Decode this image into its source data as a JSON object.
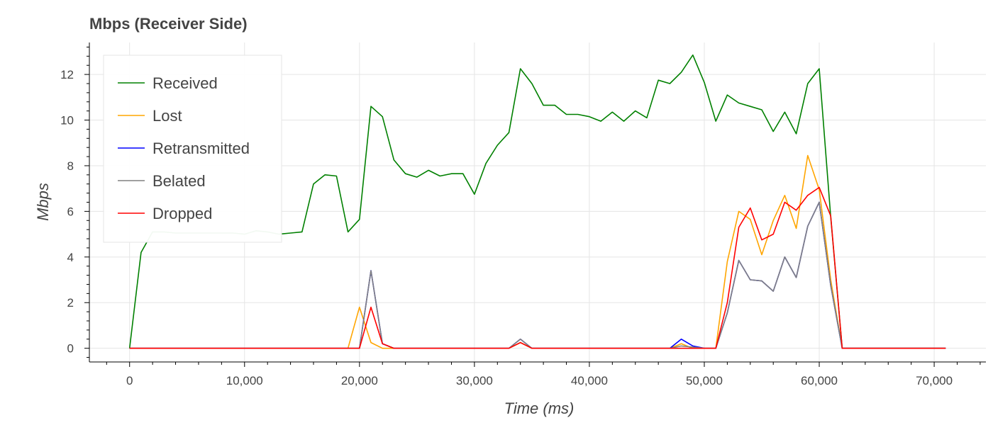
{
  "chart_data": {
    "type": "line",
    "title": "Mbps (Receiver Side)",
    "xlabel": "Time (ms)",
    "ylabel": "Mbps",
    "xlim": [
      -3500,
      74500
    ],
    "ylim": [
      -0.6,
      13.4
    ],
    "xticks": [
      0,
      10000,
      20000,
      30000,
      40000,
      50000,
      60000,
      70000
    ],
    "xtick_labels": [
      "0",
      "10,000",
      "20,000",
      "30,000",
      "40,000",
      "50,000",
      "60,000",
      "70,000"
    ],
    "yticks": [
      0,
      2,
      4,
      6,
      8,
      10,
      12
    ],
    "ytick_labels": [
      "0",
      "2",
      "4",
      "6",
      "8",
      "10",
      "12"
    ],
    "grid": true,
    "legend_position": "top-left",
    "x": [
      0,
      1000,
      2000,
      3000,
      4000,
      5000,
      6000,
      7000,
      8000,
      9000,
      10000,
      11000,
      12000,
      13000,
      14000,
      15000,
      16000,
      17000,
      18000,
      19000,
      20000,
      21000,
      22000,
      23000,
      24000,
      25000,
      26000,
      27000,
      28000,
      29000,
      30000,
      31000,
      32000,
      33000,
      34000,
      35000,
      36000,
      37000,
      38000,
      39000,
      40000,
      41000,
      42000,
      43000,
      44000,
      45000,
      46000,
      47000,
      48000,
      49000,
      50000,
      51000,
      52000,
      53000,
      54000,
      55000,
      56000,
      57000,
      58000,
      59000,
      60000,
      61000,
      62000,
      63000,
      64000,
      65000,
      66000,
      67000,
      68000,
      69000,
      70000,
      71000
    ],
    "series": [
      {
        "name": "Received",
        "color": "#008000",
        "values": [
          0,
          4.2,
          5.1,
          5.1,
          5.05,
          5.05,
          5.05,
          5.05,
          5.05,
          5.05,
          5.0,
          5.15,
          5.1,
          5.0,
          5.05,
          5.1,
          7.2,
          7.6,
          7.55,
          5.1,
          5.65,
          10.6,
          10.15,
          8.25,
          7.65,
          7.5,
          7.8,
          7.55,
          7.65,
          7.65,
          6.75,
          8.1,
          8.9,
          9.45,
          12.25,
          11.6,
          10.65,
          10.65,
          10.25,
          10.25,
          10.15,
          9.95,
          10.35,
          9.95,
          10.4,
          10.1,
          11.75,
          11.6,
          12.1,
          12.85,
          11.65,
          9.95,
          11.1,
          10.75,
          10.6,
          10.45,
          9.5,
          10.35,
          9.4,
          11.6,
          12.25,
          5.75,
          0,
          0,
          0,
          0,
          0,
          0,
          0,
          0,
          0,
          0
        ]
      },
      {
        "name": "Lost",
        "color": "#ffa500",
        "values": [
          0,
          0,
          0,
          0,
          0,
          0,
          0,
          0,
          0,
          0,
          0,
          0,
          0,
          0,
          0,
          0,
          0,
          0,
          0,
          0,
          1.8,
          0.25,
          0,
          0,
          0,
          0,
          0,
          0,
          0,
          0,
          0,
          0,
          0,
          0,
          0.25,
          0,
          0,
          0,
          0,
          0,
          0,
          0,
          0,
          0,
          0,
          0,
          0,
          0,
          0.2,
          0,
          0,
          0,
          3.8,
          6.0,
          5.65,
          4.1,
          5.6,
          6.7,
          5.25,
          8.45,
          6.95,
          3.0,
          0,
          0,
          0,
          0,
          0,
          0,
          0,
          0,
          0,
          0
        ]
      },
      {
        "name": "Retransmitted",
        "color": "#0000ff",
        "values": [
          0,
          0,
          0,
          0,
          0,
          0,
          0,
          0,
          0,
          0,
          0,
          0,
          0,
          0,
          0,
          0,
          0,
          0,
          0,
          0,
          0,
          3.4,
          0.2,
          0,
          0,
          0,
          0,
          0,
          0,
          0,
          0,
          0,
          0,
          0,
          0.4,
          0,
          0,
          0,
          0,
          0,
          0,
          0,
          0,
          0,
          0,
          0,
          0,
          0,
          0.4,
          0.1,
          0,
          0,
          1.55,
          3.85,
          3.0,
          2.95,
          2.5,
          4.0,
          3.1,
          5.35,
          6.4,
          2.75,
          0,
          0,
          0,
          0,
          0,
          0,
          0,
          0,
          0,
          0
        ]
      },
      {
        "name": "Belated",
        "color": "#808080",
        "values": [
          0,
          0,
          0,
          0,
          0,
          0,
          0,
          0,
          0,
          0,
          0,
          0,
          0,
          0,
          0,
          0,
          0,
          0,
          0,
          0,
          0,
          3.4,
          0.2,
          0,
          0,
          0,
          0,
          0,
          0,
          0,
          0,
          0,
          0,
          0,
          0.4,
          0,
          0,
          0,
          0,
          0,
          0,
          0,
          0,
          0,
          0,
          0,
          0,
          0,
          0.1,
          0.05,
          0,
          0,
          1.55,
          3.85,
          3.0,
          2.95,
          2.5,
          4.0,
          3.1,
          5.35,
          6.4,
          2.75,
          0,
          0,
          0,
          0,
          0,
          0,
          0,
          0,
          0,
          0
        ]
      },
      {
        "name": "Dropped",
        "color": "#ff0000",
        "values": [
          0,
          0,
          0,
          0,
          0,
          0,
          0,
          0,
          0,
          0,
          0,
          0,
          0,
          0,
          0,
          0,
          0,
          0,
          0,
          0,
          0,
          1.8,
          0.2,
          0,
          0,
          0,
          0,
          0,
          0,
          0,
          0,
          0,
          0,
          0,
          0.25,
          0,
          0,
          0,
          0,
          0,
          0,
          0,
          0,
          0,
          0,
          0,
          0,
          0,
          0,
          0,
          0,
          0,
          2.0,
          5.3,
          6.15,
          4.75,
          5.0,
          6.4,
          6.05,
          6.7,
          7.05,
          5.8,
          0,
          0,
          0,
          0,
          0,
          0,
          0,
          0,
          0,
          0
        ]
      }
    ]
  }
}
